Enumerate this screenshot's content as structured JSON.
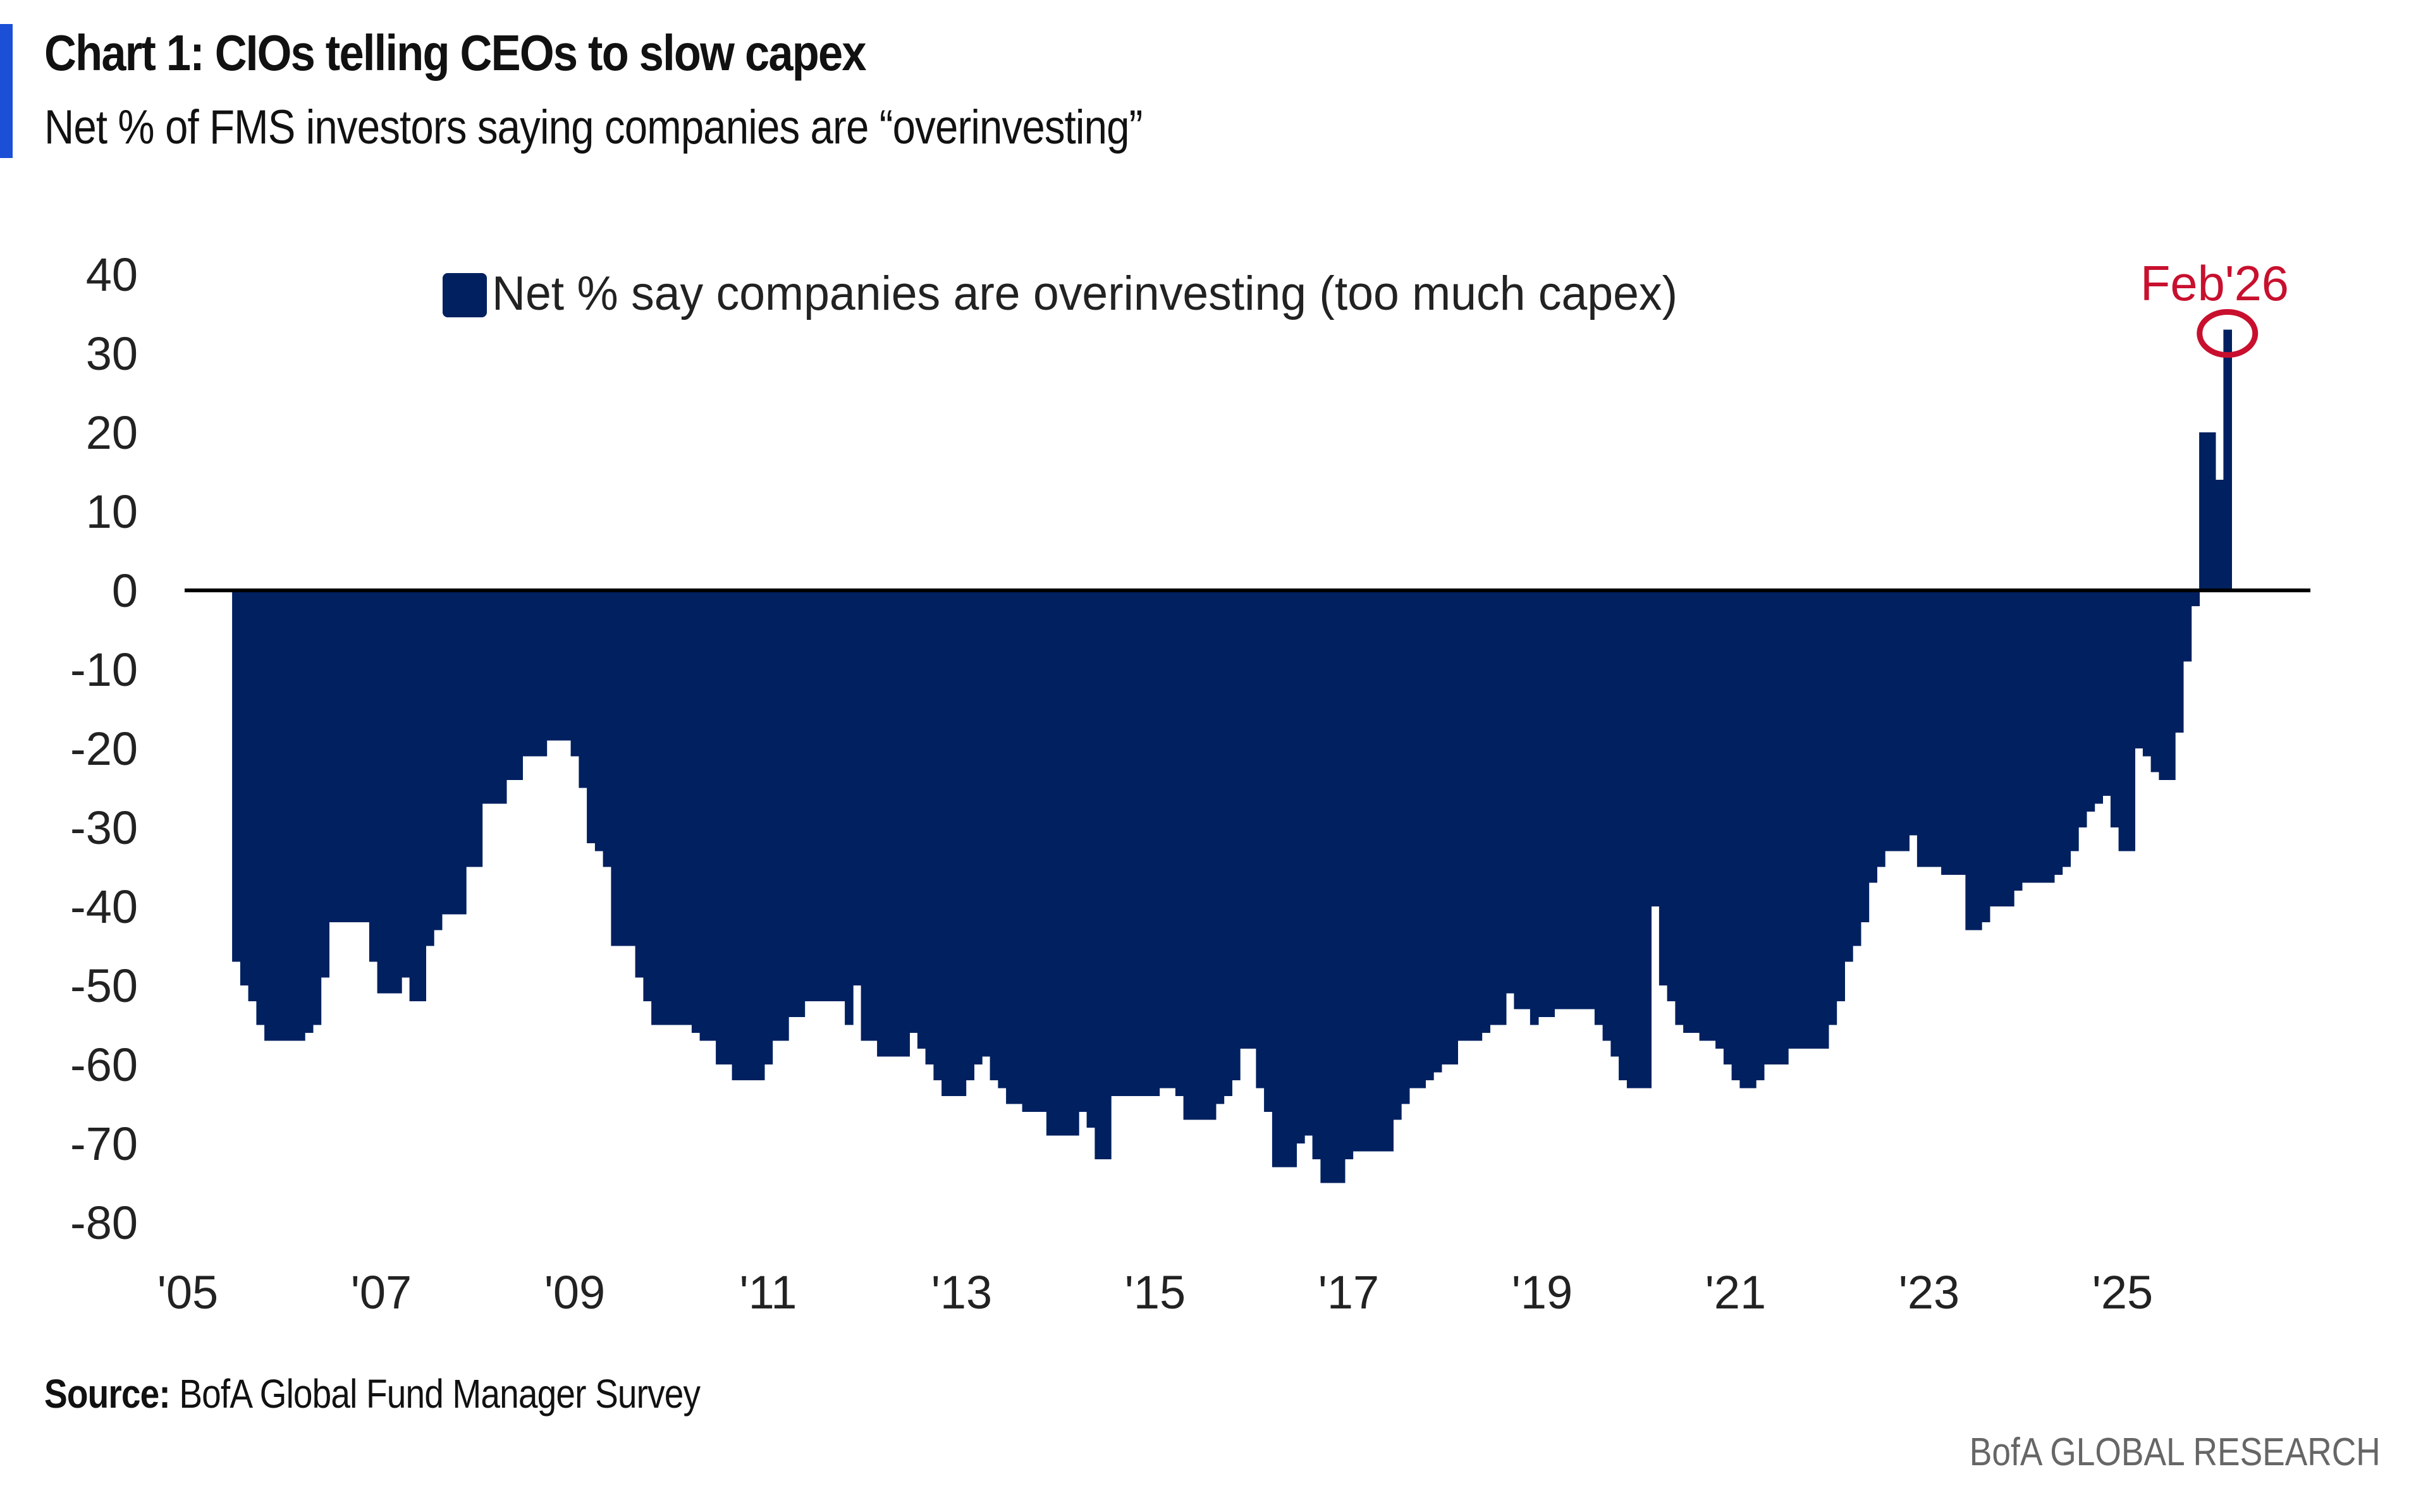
{
  "header": {
    "title": "Chart 1: CIOs telling CEOs to slow capex",
    "subtitle": "Net % of FMS investors saying companies are “overinvesting”"
  },
  "footer": {
    "source_label": "Source:",
    "source_text": " BofA Global Fund Manager Survey",
    "brand": "BofA GLOBAL RESEARCH"
  },
  "colors": {
    "accent_bar": "#1a4fd6",
    "series": "#002060",
    "annotation": "#c8102e",
    "zero_line": "#000000"
  },
  "chart_data": {
    "type": "area",
    "title": "Chart 1: CIOs telling CEOs to slow capex",
    "subtitle": "Net % of FMS investors saying companies are “overinvesting”",
    "xlabel": "",
    "ylabel": "",
    "ylim": [
      -80,
      40
    ],
    "yticks": [
      40,
      30,
      20,
      10,
      0,
      -10,
      -20,
      -30,
      -40,
      -50,
      -60,
      -70,
      -80
    ],
    "xticks": [
      {
        "year": 2005,
        "label": "'05"
      },
      {
        "year": 2007,
        "label": "'07"
      },
      {
        "year": 2009,
        "label": "'09"
      },
      {
        "year": 2011,
        "label": "'11"
      },
      {
        "year": 2013,
        "label": "'13"
      },
      {
        "year": 2015,
        "label": "'15"
      },
      {
        "year": 2017,
        "label": "'17"
      },
      {
        "year": 2019,
        "label": "'19"
      },
      {
        "year": 2021,
        "label": "'21"
      },
      {
        "year": 2023,
        "label": "'23"
      },
      {
        "year": 2025,
        "label": "'25"
      }
    ],
    "grid": false,
    "legend": {
      "position": "top",
      "entries": [
        "Net % say companies are overinvesting (too much capex)"
      ]
    },
    "annotation": {
      "label": "Feb'26",
      "date": "2026-02",
      "marker": "circle"
    },
    "frequency": "monthly",
    "series": [
      {
        "name": "Net % say companies are overinvesting (too much capex)",
        "monthly_by_year": [
          {
            "year": 2005,
            "first_month": 7,
            "values": [
              -47,
              -50,
              -52,
              -55,
              -57,
              -57
            ]
          },
          {
            "year": 2006,
            "first_month": 1,
            "values": [
              -57,
              -57,
              -57,
              -56,
              -55,
              -49,
              -42,
              -42,
              -42,
              -42,
              -42,
              -47
            ]
          },
          {
            "year": 2007,
            "first_month": 1,
            "values": [
              -51,
              -51,
              -51,
              -49,
              -52,
              -52,
              -45,
              -43,
              -41,
              -41,
              -41,
              -35
            ]
          },
          {
            "year": 2008,
            "first_month": 1,
            "values": [
              -35,
              -27,
              -27,
              -27,
              -24,
              -24,
              -21,
              -21,
              -21,
              -19,
              -19,
              -19
            ]
          },
          {
            "year": 2009,
            "first_month": 1,
            "values": [
              -21,
              -25,
              -32,
              -33,
              -35,
              -45,
              -45,
              -45,
              -49,
              -52,
              -55,
              -55
            ]
          },
          {
            "year": 2010,
            "first_month": 1,
            "values": [
              -55,
              -55,
              -55,
              -56,
              -57,
              -57,
              -60,
              -60,
              -62,
              -62,
              -62,
              -62
            ]
          },
          {
            "year": 2011,
            "first_month": 1,
            "values": [
              -60,
              -57,
              -57,
              -54,
              -54,
              -52,
              -52,
              -52,
              -52,
              -52,
              -55,
              -50
            ]
          },
          {
            "year": 2012,
            "first_month": 1,
            "values": [
              -57,
              -57,
              -59,
              -59,
              -59,
              -59,
              -56,
              -58,
              -60,
              -62,
              -64,
              -64
            ]
          },
          {
            "year": 2013,
            "first_month": 1,
            "values": [
              -64,
              -62,
              -60,
              -59,
              -62,
              -63,
              -65,
              -65,
              -66,
              -66,
              -66,
              -69
            ]
          },
          {
            "year": 2014,
            "first_month": 1,
            "values": [
              -69,
              -69,
              -69,
              -66,
              -68,
              -72,
              -72,
              -64,
              -64,
              -64,
              -64,
              -64
            ]
          },
          {
            "year": 2015,
            "first_month": 1,
            "values": [
              -64,
              -63,
              -63,
              -64,
              -67,
              -67,
              -67,
              -67,
              -65,
              -64,
              -62,
              -58
            ]
          },
          {
            "year": 2016,
            "first_month": 1,
            "values": [
              -58,
              -63,
              -66,
              -73,
              -73,
              -73,
              -70,
              -69,
              -72,
              -75,
              -75,
              -75
            ]
          },
          {
            "year": 2017,
            "first_month": 1,
            "values": [
              -72,
              -71,
              -71,
              -71,
              -71,
              -71,
              -67,
              -65,
              -63,
              -63,
              -62,
              -61
            ]
          },
          {
            "year": 2018,
            "first_month": 1,
            "values": [
              -60,
              -60,
              -57,
              -57,
              -57,
              -56,
              -55,
              -55,
              -51,
              -53,
              -53,
              -55
            ]
          },
          {
            "year": 2019,
            "first_month": 1,
            "values": [
              -54,
              -54,
              -53,
              -53,
              -53,
              -53,
              -53,
              -55,
              -57,
              -59,
              -62,
              -63
            ]
          },
          {
            "year": 2020,
            "first_month": 1,
            "values": [
              -63,
              -63,
              -40,
              -50,
              -52,
              -55,
              -56,
              -56,
              -57,
              -57,
              -58,
              -60
            ]
          },
          {
            "year": 2021,
            "first_month": 1,
            "values": [
              -62,
              -63,
              -63,
              -62,
              -60,
              -60,
              -60,
              -58,
              -58,
              -58,
              -58,
              -58
            ]
          },
          {
            "year": 2022,
            "first_month": 1,
            "values": [
              -55,
              -52,
              -47,
              -45,
              -42,
              -37,
              -35,
              -33,
              -33,
              -33,
              -31,
              -35
            ]
          },
          {
            "year": 2023,
            "first_month": 1,
            "values": [
              -35,
              -35,
              -36,
              -36,
              -36,
              -43,
              -43,
              -42,
              -40,
              -40,
              -40,
              -38
            ]
          },
          {
            "year": 2024,
            "first_month": 1,
            "values": [
              -37,
              -37,
              -37,
              -37,
              -36,
              -35,
              -33,
              -30,
              -28,
              -27,
              -26,
              -30
            ]
          },
          {
            "year": 2025,
            "first_month": 1,
            "values": [
              -33,
              -33,
              -20,
              -21,
              -23,
              -24,
              -24,
              -18,
              -9,
              -2,
              20,
              20
            ]
          },
          {
            "year": 2026,
            "first_month": 1,
            "values": [
              14,
              33
            ]
          }
        ]
      }
    ]
  }
}
